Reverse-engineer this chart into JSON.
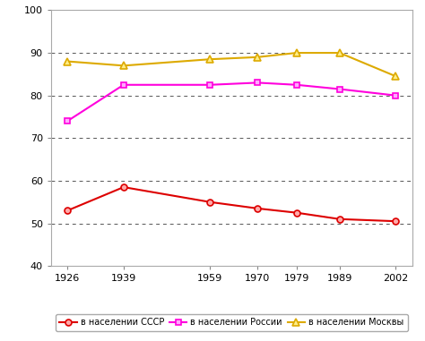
{
  "years": [
    1926,
    1939,
    1959,
    1970,
    1979,
    1989,
    2002
  ],
  "ussr": [
    53.0,
    58.5,
    55.0,
    53.5,
    52.5,
    51.0,
    50.5
  ],
  "russia": [
    74.0,
    82.5,
    82.5,
    83.0,
    82.5,
    81.5,
    80.0
  ],
  "moscow": [
    88.0,
    87.0,
    88.5,
    89.0,
    90.0,
    90.0,
    84.5
  ],
  "ussr_color": "#dd0000",
  "russia_color": "#ff00dd",
  "moscow_color": "#ddaa00",
  "ussr_label": "в населении СССР",
  "russia_label": "в населении России",
  "moscow_label": "в населении Москвы",
  "ylim": [
    40,
    100
  ],
  "yticks": [
    40,
    50,
    60,
    70,
    80,
    90,
    100
  ],
  "background_color": "#ffffff",
  "grid_color": "#555555"
}
